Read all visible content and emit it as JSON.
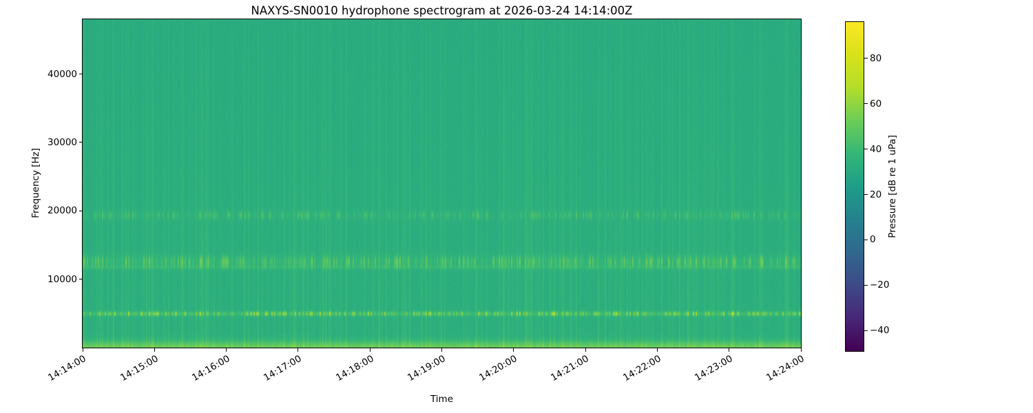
{
  "chart_data": {
    "type": "heatmap",
    "title": "NAXYS-SN0010 hydrophone spectrogram at 2026-03-24 14:14:00Z",
    "xlabel": "Time",
    "ylabel": "Frequency [Hz]",
    "x_tick_labels": [
      "14:14:00",
      "14:15:00",
      "14:16:00",
      "14:17:00",
      "14:18:00",
      "14:19:00",
      "14:20:00",
      "14:21:00",
      "14:22:00",
      "14:23:00",
      "14:24:00"
    ],
    "y_ticks": [
      {
        "value": 10000,
        "label": "10000"
      },
      {
        "value": 20000,
        "label": "20000"
      },
      {
        "value": 30000,
        "label": "30000"
      },
      {
        "value": 40000,
        "label": "40000"
      }
    ],
    "x_range": {
      "start": "14:14:00",
      "end": "14:24:00",
      "span_seconds": 600
    },
    "y_range_hz": [
      0,
      48000
    ],
    "grid": false,
    "legend": "none",
    "colorbar": {
      "label": "Pressure [dB re 1 uPa]",
      "min": -49,
      "max": 96,
      "ticks": [
        {
          "value": 80,
          "label": "80"
        },
        {
          "value": 60,
          "label": "60"
        },
        {
          "value": 40,
          "label": "40"
        },
        {
          "value": 20,
          "label": "20"
        },
        {
          "value": 0,
          "label": "0"
        },
        {
          "value": -20,
          "label": "−20"
        },
        {
          "value": -40,
          "label": "−40"
        }
      ],
      "colormap": "viridis",
      "colormap_stops": [
        "#440154",
        "#482878",
        "#3e4a89",
        "#31688e",
        "#26828e",
        "#1f9e89",
        "#35b779",
        "#6dcd59",
        "#b4de2c",
        "#d8e219",
        "#fde725"
      ]
    },
    "spectrogram_model": {
      "description": "Ambient background ~33 dB re 1 uPa with intermittent tonal/broadband bursts appearing as vertical striations; brightest intermittent tonal near 5 kHz (up to ~66 dB), diffuse bursty band near 12.5 kHz, faint band near 19.5 kHz, continuous elevated low-frequency noise below ~2 kHz.",
      "background_db": 33,
      "pixel_noise_db": 1.3,
      "vertical_broadband_burst_db": 7,
      "seed": 42,
      "bands": [
        {
          "name": "low-frequency-noise",
          "center_hz": 0,
          "sigma_hz": 1000,
          "base_db": 17,
          "burst_db": 5
        },
        {
          "name": "tonal-5kHz",
          "center_hz": 5000,
          "sigma_hz": 330,
          "base_db": 6,
          "burst_db": 27
        },
        {
          "name": "band-12.5kHz",
          "center_hz": 12600,
          "sigma_hz": 900,
          "base_db": 3,
          "burst_db": 16
        },
        {
          "name": "line-11.8kHz",
          "center_hz": 11800,
          "sigma_hz": 260,
          "base_db": 3,
          "burst_db": 3
        },
        {
          "name": "band-19.5kHz",
          "center_hz": 19400,
          "sigma_hz": 650,
          "base_db": 1,
          "burst_db": 11
        }
      ]
    }
  }
}
